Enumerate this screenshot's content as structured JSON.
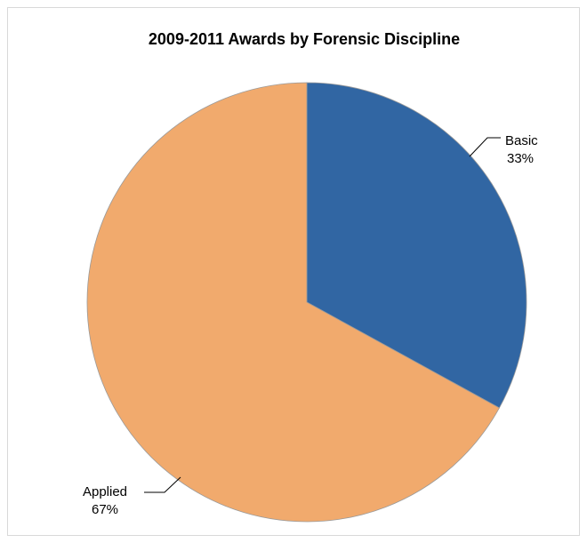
{
  "chart_data": {
    "type": "pie",
    "title": "2009-2011 Awards by Forensic Discipline",
    "categories": [
      "Basic",
      "Applied"
    ],
    "values": [
      33,
      67
    ],
    "labels": [
      "33%",
      "67%"
    ],
    "colors": [
      "#3166a3",
      "#f1aa6d"
    ],
    "start_angle_deg": 0,
    "direction": "clockwise",
    "legend": "none",
    "data_labels": "outside with leader lines"
  }
}
